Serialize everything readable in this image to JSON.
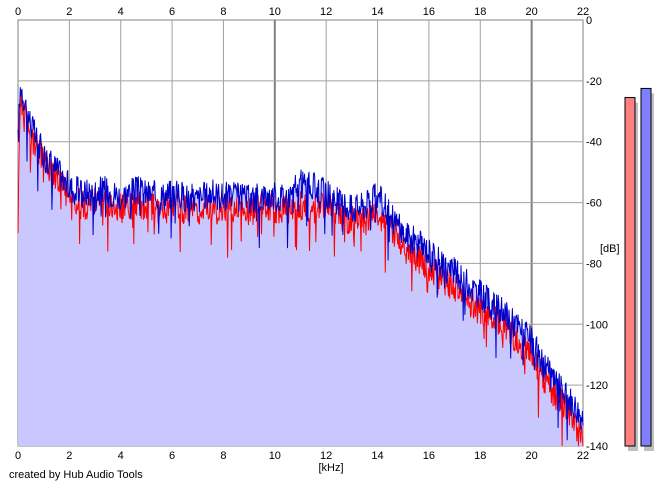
{
  "chart_data": {
    "type": "area",
    "title": "",
    "xlabel": "[kHz]",
    "ylabel": "[dB]",
    "xlim": [
      0,
      22
    ],
    "ylim": [
      -140,
      0
    ],
    "grid": true,
    "x_ticks": [
      0,
      2,
      4,
      6,
      8,
      10,
      12,
      14,
      16,
      18,
      20,
      22
    ],
    "y_ticks": [
      0,
      -20,
      -40,
      -60,
      -80,
      -100,
      -120,
      -140
    ],
    "x_tick_labels": [
      "0",
      "2",
      "4",
      "6",
      "8",
      "10",
      "12",
      "14",
      "16",
      "18",
      "20",
      "22"
    ],
    "y_tick_labels": [
      "0",
      "-20",
      "-40",
      "-60",
      "-80",
      "-100",
      "-120",
      "-140"
    ],
    "colors": {
      "fill": "#c8c8ff",
      "left_line": "#ff0000",
      "right_line": "#0000cc",
      "grid": "#a0a0a0",
      "major_grid": "#808080",
      "left_meter": "#ff8080",
      "right_meter": "#8080ff",
      "meter_shadow": "#c0c0c0"
    },
    "series": [
      {
        "color": "red",
        "x": [
          0,
          0.1,
          0.3,
          0.5,
          0.7,
          1,
          1.5,
          2,
          2.5,
          3,
          3.5,
          4,
          4.5,
          5,
          5.5,
          6,
          6.5,
          7,
          7.5,
          8,
          8.5,
          9,
          9.5,
          10,
          10.5,
          11,
          11.5,
          12,
          12.5,
          13,
          13.5,
          14,
          14.5,
          15,
          15.5,
          16,
          16.5,
          17,
          17.5,
          18,
          18.5,
          19,
          19.5,
          20,
          20.5,
          21,
          21.5,
          22
        ],
        "values": [
          -57,
          -25,
          -32,
          -38,
          -42,
          -46,
          -52,
          -58,
          -61,
          -60,
          -61,
          -62,
          -60,
          -61,
          -62,
          -62,
          -62,
          -63,
          -61,
          -62,
          -62,
          -63,
          -62,
          -62,
          -62,
          -61,
          -62,
          -61,
          -64,
          -66,
          -66,
          -64,
          -68,
          -74,
          -78,
          -81,
          -85,
          -88,
          -92,
          -95,
          -98,
          -101,
          -106,
          -110,
          -118,
          -124,
          -129,
          -139
        ]
      },
      {
        "color": "blue",
        "x": [
          0,
          0.1,
          0.3,
          0.5,
          0.7,
          1,
          1.5,
          2,
          2.5,
          3,
          3.5,
          4,
          4.5,
          5,
          5.5,
          6,
          6.5,
          7,
          7.5,
          8,
          8.5,
          9,
          9.5,
          10,
          10.5,
          11,
          11.5,
          12,
          12.5,
          13,
          13.5,
          14,
          14.5,
          15,
          15.5,
          16,
          16.5,
          17,
          17.5,
          18,
          18.5,
          19,
          19.5,
          20,
          20.5,
          21,
          21.5,
          22
        ],
        "values": [
          -40,
          -21,
          -28,
          -34,
          -39,
          -44,
          -49,
          -55,
          -57,
          -56,
          -56,
          -58,
          -56,
          -57,
          -58,
          -57,
          -58,
          -59,
          -57,
          -58,
          -58,
          -59,
          -58,
          -58,
          -58,
          -54,
          -55,
          -57,
          -60,
          -62,
          -61,
          -58,
          -64,
          -70,
          -73,
          -76,
          -80,
          -83,
          -87,
          -90,
          -94,
          -97,
          -101,
          -106,
          -114,
          -120,
          -125,
          -131
        ]
      }
    ],
    "meters": [
      {
        "name": "left",
        "value": -13
      },
      {
        "name": "right",
        "value": -10
      }
    ]
  },
  "footer": {
    "credit": "created by Hub Audio Tools"
  }
}
